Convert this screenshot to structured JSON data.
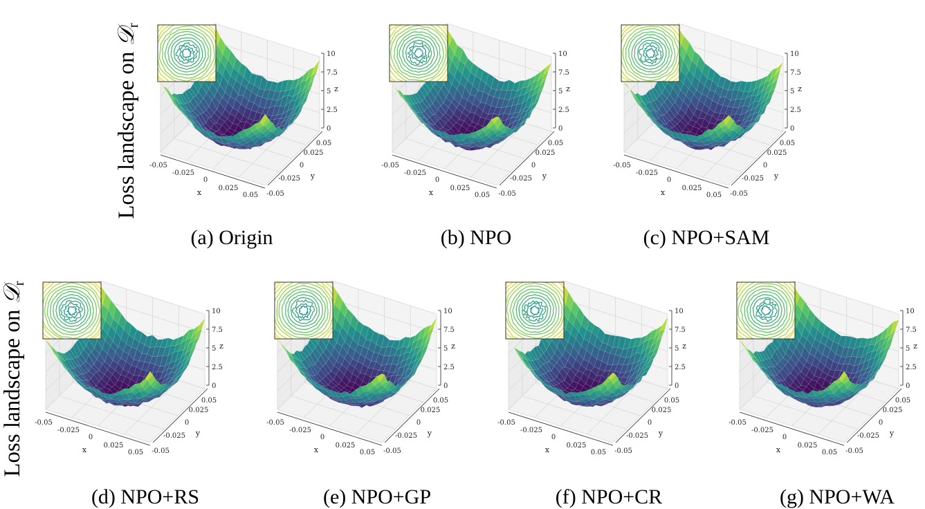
{
  "figure": {
    "row_labels": [
      {
        "prefix": "Loss landscape on ",
        "symbol": "𝒟",
        "sub": "r"
      },
      {
        "prefix": "Loss landscape on ",
        "symbol": "𝒟",
        "sub": "r"
      }
    ]
  },
  "chart_data": {
    "type": "surface",
    "colormap": "viridis",
    "xlabel": "x",
    "ylabel": "y",
    "zlabel": "z",
    "xlim": [
      -0.05,
      0.05
    ],
    "ylim": [
      -0.05,
      0.05
    ],
    "zlim": [
      0,
      10
    ],
    "xticks": [
      "-0.05",
      "-0.025",
      "0",
      "0.025",
      "0.05"
    ],
    "yticks": [
      "-0.05",
      "-0.025",
      "0",
      "0.025",
      "0.05"
    ],
    "zticks": [
      "0",
      "2.5",
      "5",
      "7.5",
      "10"
    ],
    "inset": "contour",
    "panels": [
      {
        "caption": "(a) Origin",
        "seed": 1
      },
      {
        "caption": "(b) NPO",
        "seed": 2
      },
      {
        "caption": "(c) NPO+SAM",
        "seed": 3
      },
      {
        "caption": "(d) NPO+RS",
        "seed": 4
      },
      {
        "caption": "(e) NPO+GP",
        "seed": 5
      },
      {
        "caption": "(f) NPO+CR",
        "seed": 6
      },
      {
        "caption": "(g) NPO+WA",
        "seed": 7
      }
    ]
  }
}
